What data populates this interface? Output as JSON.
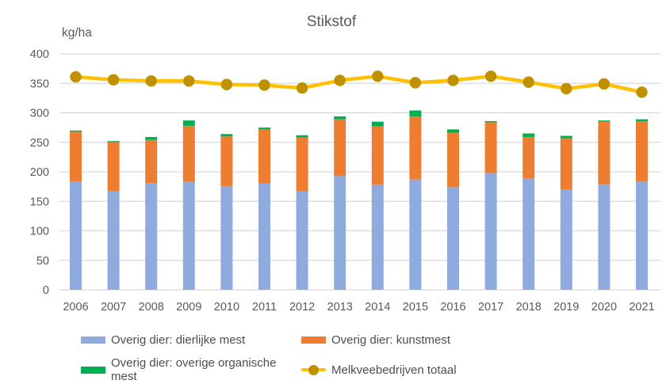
{
  "title": "Stikstof",
  "y_axis_unit_label": "kg/ha",
  "colors": {
    "bar_blue": "#8FAADC",
    "bar_orange": "#ED7D31",
    "bar_green": "#00B050",
    "line_yellow": "#FFC000",
    "marker_gold": "#BF9000",
    "gridline": "#D9D9D9",
    "text": "#595959"
  },
  "chart_data": {
    "type": "bar",
    "subtype": "stacked bars with overlaid line series",
    "title": "Stikstof",
    "ylabel": "kg/ha",
    "xlabel": "",
    "ylim": [
      0,
      400
    ],
    "yticks": [
      0,
      50,
      100,
      150,
      200,
      250,
      300,
      350,
      400
    ],
    "grid": "horizontal",
    "legend_position": "bottom",
    "categories": [
      "2006",
      "2007",
      "2008",
      "2009",
      "2010",
      "2011",
      "2012",
      "2013",
      "2014",
      "2015",
      "2016",
      "2017",
      "2018",
      "2019",
      "2020",
      "2021"
    ],
    "series": [
      {
        "name": "Overig dier: dierlijke mest",
        "type": "bar-stacked",
        "color": "#8FAADC",
        "values": [
          184,
          167,
          181,
          183,
          176,
          180,
          167,
          193,
          178,
          187,
          174,
          198,
          189,
          170,
          179,
          184
        ]
      },
      {
        "name": "Overig dier: kunstmest",
        "type": "bar-stacked",
        "color": "#ED7D31",
        "values": [
          84,
          83,
          73,
          95,
          84,
          92,
          91,
          96,
          99,
          107,
          92,
          86,
          70,
          87,
          106,
          102
        ]
      },
      {
        "name": "Overig dier: overige organische mest",
        "type": "bar-stacked",
        "color": "#00B050",
        "values": [
          2,
          2,
          5,
          9,
          4,
          3,
          4,
          5,
          8,
          10,
          6,
          2,
          6,
          4,
          2,
          3
        ]
      },
      {
        "name": "Melkveebedrijven totaal",
        "type": "line",
        "color": "#FFC000",
        "marker_color": "#BF9000",
        "values": [
          361,
          356,
          354,
          354,
          348,
          347,
          342,
          355,
          362,
          351,
          355,
          362,
          352,
          341,
          349,
          335
        ]
      }
    ],
    "stacked_totals": [
      270,
      252,
      259,
      287,
      264,
      275,
      262,
      294,
      285,
      304,
      272,
      286,
      265,
      261,
      287,
      289
    ]
  },
  "legend_order": [
    "Overig dier: dierlijke mest",
    "Overig dier: kunstmest",
    "Overig dier: overige organische mest",
    "Melkveebedrijven totaal"
  ]
}
